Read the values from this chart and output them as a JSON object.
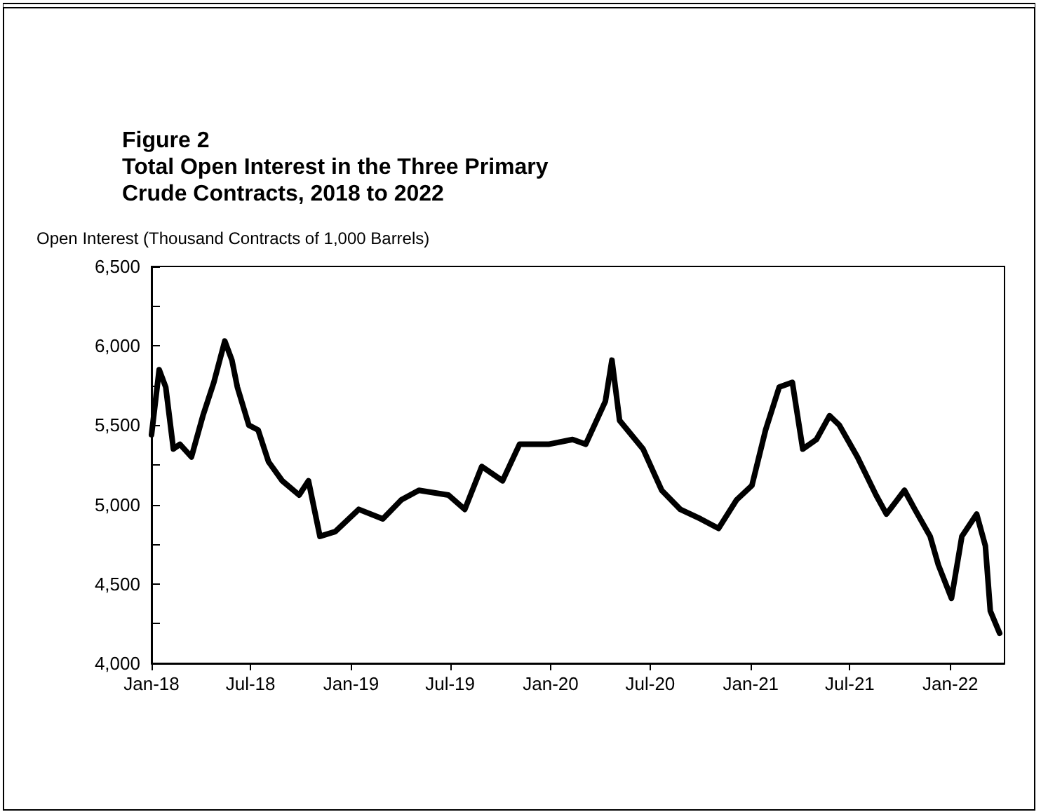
{
  "chart_data": {
    "type": "line",
    "title": "Figure 2\nTotal Open Interest in the Three Primary\nCrude Contracts, 2018 to 2022",
    "ylabel": "Open Interest (Thousand Contracts of 1,000 Barrels)",
    "x": [
      "2018-01-01",
      "2018-01-15",
      "2018-01-27",
      "2018-02-10",
      "2018-02-22",
      "2018-03-15",
      "2018-04-05",
      "2018-04-25",
      "2018-05-15",
      "2018-05-28",
      "2018-06-07",
      "2018-06-28",
      "2018-07-15",
      "2018-08-03",
      "2018-08-28",
      "2018-09-28",
      "2018-10-15",
      "2018-11-05",
      "2018-12-03",
      "2019-01-15",
      "2019-02-28",
      "2019-04-03",
      "2019-05-05",
      "2019-06-28",
      "2019-07-28",
      "2019-08-28",
      "2019-10-05",
      "2019-11-05",
      "2019-12-28",
      "2020-02-10",
      "2020-03-05",
      "2020-04-10",
      "2020-04-22",
      "2020-05-06",
      "2020-06-18",
      "2020-07-22",
      "2020-08-25",
      "2020-10-01",
      "2020-11-03",
      "2020-12-06",
      "2021-01-03",
      "2021-01-28",
      "2021-02-22",
      "2021-03-18",
      "2021-04-06",
      "2021-05-01",
      "2021-05-25",
      "2021-06-12",
      "2021-07-15",
      "2021-08-18",
      "2021-09-06",
      "2021-10-09",
      "2021-10-28",
      "2021-11-25",
      "2021-12-10",
      "2022-01-03",
      "2022-01-22",
      "2022-02-18",
      "2022-03-06",
      "2022-03-15",
      "2022-04-01"
    ],
    "series": [
      {
        "color": "#000000",
        "values": [
          5440,
          5850,
          5740,
          5350,
          5380,
          5300,
          5560,
          5770,
          6030,
          5910,
          5740,
          5500,
          5470,
          5270,
          5150,
          5060,
          5150,
          4800,
          4830,
          4970,
          4910,
          5030,
          5090,
          5060,
          4970,
          5240,
          5150,
          5380,
          5380,
          5410,
          5380,
          5650,
          5910,
          5530,
          5350,
          5090,
          4970,
          4910,
          4850,
          5030,
          5120,
          5470,
          5740,
          5770,
          5350,
          5410,
          5560,
          5500,
          5300,
          5060,
          4940,
          5090,
          4970,
          4800,
          4620,
          4410,
          4800,
          4940,
          4740,
          4330,
          4190
        ]
      }
    ],
    "xlim": [
      "2018-01-01",
      "2022-04-10"
    ],
    "xticks": [
      {
        "value": "2018-01-01",
        "label": "Jan-18"
      },
      {
        "value": "2018-07-01",
        "label": "Jul-18"
      },
      {
        "value": "2019-01-01",
        "label": "Jan-19"
      },
      {
        "value": "2019-07-01",
        "label": "Jul-19"
      },
      {
        "value": "2020-01-01",
        "label": "Jan-20"
      },
      {
        "value": "2020-07-01",
        "label": "Jul-20"
      },
      {
        "value": "2021-01-01",
        "label": "Jan-21"
      },
      {
        "value": "2021-07-01",
        "label": "Jul-21"
      },
      {
        "value": "2022-01-01",
        "label": "Jan-22"
      }
    ],
    "ylim": [
      4000,
      6500
    ],
    "yticks": [
      {
        "value": 4000,
        "label": "4,000"
      },
      {
        "value": 4250,
        "label": null
      },
      {
        "value": 4500,
        "label": "4,500"
      },
      {
        "value": 4750,
        "label": null
      },
      {
        "value": 5000,
        "label": "5,000"
      },
      {
        "value": 5250,
        "label": null
      },
      {
        "value": 5500,
        "label": "5,500"
      },
      {
        "value": 5750,
        "label": null
      },
      {
        "value": 6000,
        "label": "6,000"
      },
      {
        "value": 6250,
        "label": null
      },
      {
        "value": 6500,
        "label": "6,500"
      }
    ],
    "grid": false,
    "marker": "none",
    "line_style": "solid"
  }
}
